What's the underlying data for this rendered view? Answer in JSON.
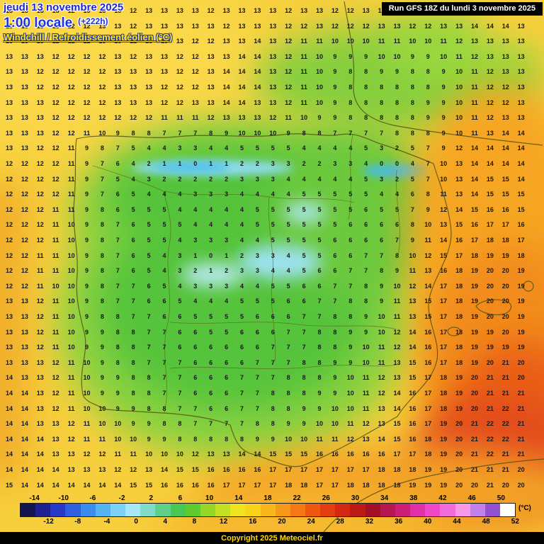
{
  "header": {
    "date_line": "jeudi 13 novembre 2025",
    "time_line": "1:00 locale",
    "offset": "(+222h)",
    "param_line": "Windchill / Refroidissement éolien (°C)",
    "run_info": "Run GFS 18Z du lundi 3 novembre 2025"
  },
  "footer": {
    "copyright": "Copyright 2025 Meteociel.fr",
    "unit_label": "(°C)"
  },
  "colorbar": {
    "top_labels": [
      "-14",
      "-10",
      "-6",
      "-2",
      "2",
      "6",
      "10",
      "14",
      "18",
      "22",
      "26",
      "30",
      "34",
      "38",
      "42",
      "46",
      "50"
    ],
    "bottom_labels": [
      "-12",
      "-8",
      "-4",
      "0",
      "4",
      "8",
      "12",
      "16",
      "20",
      "24",
      "28",
      "32",
      "36",
      "40",
      "44",
      "48",
      "52"
    ],
    "colors": [
      "#141450",
      "#1c2090",
      "#2838c8",
      "#3060e0",
      "#3c8cee",
      "#54b4f2",
      "#7cd2f6",
      "#a8e6fa",
      "#80dcc8",
      "#5ed08a",
      "#46c852",
      "#5ecc2e",
      "#96d626",
      "#c4e022",
      "#eee41e",
      "#f8d41c",
      "#f8b81a",
      "#f69818",
      "#f47814",
      "#ee5810",
      "#e43c0e",
      "#d62810",
      "#bc1a14",
      "#a41028",
      "#b81850",
      "#cc2078",
      "#e030a8",
      "#ee48c8",
      "#f06cd8",
      "#f898e8",
      "#c080e8",
      "#9050d0",
      "#ffffff"
    ]
  },
  "grid": {
    "rows": [
      "13 13 13 13 12 13 13 13 12 13 13 13 13 12 13 13 13 13 12 13 13 12 12 13 13 13 12 13 13 14 14 15 14 13",
      "13 13 13 13 12 12 13 13 12 13 13 13 13 13 12 13 13 13 12 12 13 12 12 12 13 13 12 12 13 13 14 14 14 13",
      "13 13 13 12 12 12 13 13 12 13 13 13 12 12 13 13 14 13 12 11 11 10 10 10 11 11 10 10 11 12 13 13 13 13",
      "13 13 13 12 12 12 12 13 12 13 13 12 12 13 13 14 14 13 12 11 10 9 9 9 10 10 9 9 10 11 12 13 13 13",
      "13 13 12 12 12 12 12 13 13 13 13 12 12 13 14 14 14 13 12 11 10 9 8 8 9 9 8 8 9 10 11 12 13 13",
      "13 13 12 12 12 12 12 13 13 13 12 12 12 13 14 14 14 13 12 11 10 9 8 8 8 8 8 8 9 10 11 12 12 13",
      "13 13 13 12 12 12 12 13 13 13 12 12 13 13 14 14 13 13 12 11 10 9 8 8 8 8 8 9 9 10 11 12 12 13",
      "13 13 13 12 12 12 12 12 12 12 11 11 11 12 13 13 13 12 11 10 9 9 8 8 8 8 8 9 9 10 11 12 13 13",
      "13 13 13 12 12 11 10 9 8 8 7 7 7 8 9 10 10 10 9 8 8 7 7 7 7 8 8 8 9 10 11 13 14 14",
      "13 13 12 12 11 9 8 7 5 4 4 3 3 4 4 5 5 5 5 4 4 4 4 5 3 2 5 7 9 12 14 14 14 14",
      "12 12 12 12 11 9 7 6 4 2 1 1 0 1 1 2 2 3 3 2 2 3 3 4 0 0 4 7 10 13 14 14 14 14",
      "12 12 12 12 11 9 7 5 4 3 2 2 2 2 2 3 3 3 4 4 4 4 4 5 3 2 5 7 10 13 14 15 15 14",
      "12 12 12 12 11 9 7 6 5 4 4 4 3 3 3 4 4 4 4 5 5 5 5 5 4 4 6 8 11 13 14 15 15 15",
      "12 12 12 11 11 9 8 6 5 5 5 4 4 4 4 4 5 5 5 5 5 5 5 6 5 5 7 9 12 14 15 16 16 15",
      "12 12 12 11 10 9 8 7 6 5 5 5 4 4 4 4 5 5 5 5 5 5 6 6 6 6 8 10 13 15 16 17 17 16",
      "12 12 12 11 10 9 8 7 6 5 5 4 3 3 3 4 4 5 5 5 5 6 6 6 6 7 9 11 14 16 17 18 18 17",
      "12 12 11 11 10 9 8 7 6 5 4 3 1 0 1 2 3 3 4 5 5 6 6 7 7 8 10 12 15 17 18 19 19 18",
      "12 12 11 11 10 9 8 7 6 5 4 3 2 1 2 3 3 4 4 5 6 6 7 7 8 9 11 13 16 18 19 20 20 19",
      "12 12 11 10 10 9 8 7 7 6 5 4 3 3 3 4 4 5 5 6 6 7 7 8 9 10 12 14 17 18 19 20 20 19",
      "13 13 12 11 10 9 8 7 7 6 6 5 4 4 4 5 5 5 6 6 7 7 8 8 9 11 13 15 17 18 19 20 20 19",
      "13 13 12 11 10 9 8 8 7 7 6 6 5 5 5 5 6 6 6 7 7 8 8 9 10 11 13 15 17 18 19 20 20 19",
      "13 13 12 11 10 9 9 8 8 7 7 6 6 5 5 6 6 6 7 7 8 8 9 9 10 12 14 16 17 18 19 19 20 19",
      "13 13 12 11 10 9 9 8 8 7 7 6 6 6 6 6 6 7 7 7 8 8 9 10 11 12 14 16 17 18 19 19 19 19",
      "13 13 13 12 11 10 9 8 8 7 7 7 6 6 6 6 7 7 7 8 8 9 9 10 11 13 15 16 17 18 19 20 21 20",
      "14 13 13 12 11 10 9 9 8 8 7 7 6 6 6 7 7 7 8 8 8 9 10 11 12 13 15 17 18 19 20 21 21 20",
      "14 14 13 12 11 10 9 9 8 8 7 7 6 6 6 7 7 8 8 8 9 9 10 11 12 14 16 17 18 19 20 21 21 21",
      "14 14 13 12 11 10 10 9 9 8 8 7 7 6 6 7 7 8 8 9 9 10 10 11 13 14 16 17 18 19 20 21 22 21",
      "14 14 13 13 12 11 10 10 9 9 8 8 7 7 7 7 8 8 9 9 10 10 11 12 13 15 16 17 19 20 21 22 22 21",
      "14 14 14 13 12 11 11 10 10 9 9 8 8 8 8 8 9 9 10 10 11 11 12 13 14 15 16 18 19 20 21 22 22 21",
      "14 14 14 13 13 12 12 11 11 10 10 10 12 13 13 14 14 15 15 15 16 16 16 16 16 17 17 18 19 20 21 22 21 21",
      "14 14 14 14 13 13 13 12 12 13 14 15 15 16 16 16 16 17 17 17 17 17 17 17 18 18 18 19 19 20 21 21 21 20",
      "15 14 14 14 14 14 14 14 15 15 16 16 16 16 17 17 17 17 18 18 17 17 18 18 18 18 19 19 19 20 20 21 20 20"
    ]
  }
}
